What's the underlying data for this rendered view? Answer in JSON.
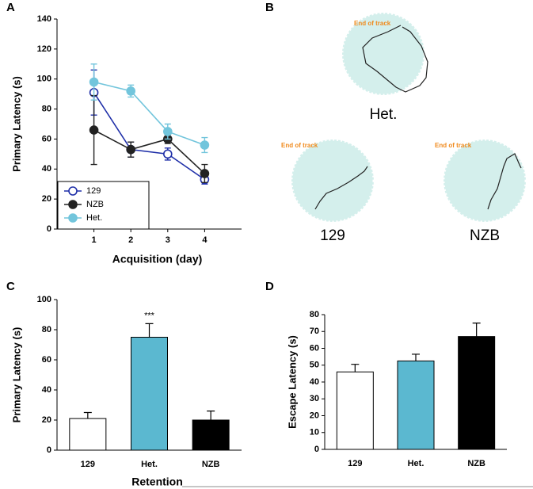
{
  "chart_data": [
    {
      "panel": "A",
      "type": "line",
      "x_label": "Acquisition (day)",
      "y_label": "Primary Latency (s)",
      "x": [
        1,
        2,
        3,
        4
      ],
      "xlim": [
        0,
        5
      ],
      "xticks": [
        1,
        2,
        3,
        4
      ],
      "ylim": [
        0,
        140
      ],
      "yticks": [
        0,
        20,
        40,
        60,
        80,
        100,
        120,
        140
      ],
      "legend": "lower left",
      "series": [
        {
          "name": "129",
          "color": "#1f2fa8",
          "filled": false,
          "values": [
            91,
            53,
            50,
            33
          ],
          "errors": [
            15,
            5,
            4,
            3
          ]
        },
        {
          "name": "NZB",
          "color": "#222222",
          "filled": true,
          "values": [
            66,
            53,
            60,
            37
          ],
          "errors": [
            23,
            5,
            3,
            6
          ]
        },
        {
          "name": "Het.",
          "color": "#72c5dc",
          "filled": true,
          "values": [
            98,
            92,
            65,
            56
          ],
          "errors": [
            12,
            4,
            5,
            5
          ]
        }
      ]
    },
    {
      "panel": "C",
      "type": "bar",
      "x_label": "Retention",
      "y_label": "Primary Latency (s)",
      "categories": [
        "129",
        "Het.",
        "NZB"
      ],
      "values": [
        21,
        75,
        20
      ],
      "errors": [
        4,
        9,
        6
      ],
      "colors": [
        "#ffffff",
        "#5bb8d0",
        "#000000"
      ],
      "ylim": [
        0,
        100
      ],
      "yticks": [
        0,
        20,
        40,
        60,
        80,
        100
      ],
      "significance": {
        "category": "Het.",
        "text": "***"
      }
    },
    {
      "panel": "D",
      "type": "bar",
      "y_label": "Escape Latency (s)",
      "categories": [
        "129",
        "Het.",
        "NZB"
      ],
      "values": [
        46,
        52.5,
        67
      ],
      "errors": [
        4.5,
        4,
        8
      ],
      "colors": [
        "#ffffff",
        "#5bb8d0",
        "#000000"
      ],
      "ylim": [
        0,
        80
      ],
      "yticks": [
        0,
        10,
        20,
        30,
        40,
        50,
        60,
        70,
        80
      ]
    }
  ],
  "tracks_panel": {
    "panel": "B",
    "tracks": [
      {
        "name": "Het.",
        "note": "End of track"
      },
      {
        "name": "129",
        "note": "End of track"
      },
      {
        "name": "NZB",
        "note": "End of track"
      }
    ]
  }
}
